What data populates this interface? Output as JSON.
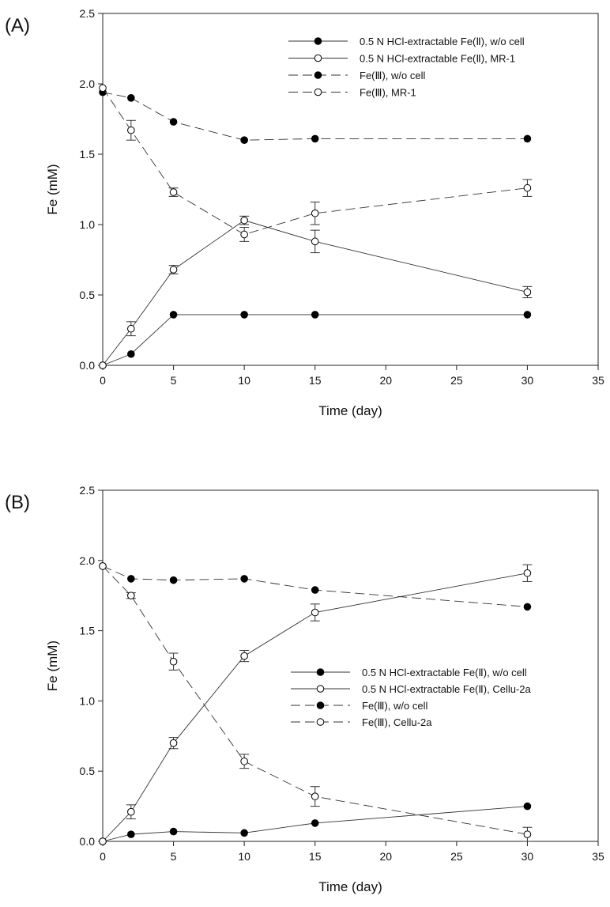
{
  "chart_data": [
    {
      "type": "line",
      "panel_label": "(A)",
      "xlabel": "Time (day)",
      "ylabel": "Fe (mM)",
      "xlim": [
        0,
        35
      ],
      "ylim": [
        0,
        2.5
      ],
      "xticks": [
        0,
        5,
        10,
        15,
        20,
        25,
        30,
        35
      ],
      "yticks": [
        0.0,
        0.5,
        1.0,
        1.5,
        2.0,
        2.5
      ],
      "ytick_labels": [
        "0.0",
        "0.5",
        "1.0",
        "1.5",
        "2.0",
        "2.5"
      ],
      "legend_position": "top-right",
      "series": [
        {
          "name": "0.5 N HCl-extractable Fe(Ⅱ), w/o cell",
          "marker": "filled",
          "line": "solid",
          "x": [
            0,
            2,
            5,
            10,
            15,
            30
          ],
          "y": [
            0.0,
            0.08,
            0.36,
            0.36,
            0.36,
            0.36
          ],
          "err": [
            0,
            0,
            0,
            0,
            0,
            0
          ]
        },
        {
          "name": "0.5 N HCl-extractable Fe(Ⅱ), MR-1",
          "marker": "open",
          "line": "solid",
          "x": [
            0,
            2,
            5,
            10,
            15,
            30
          ],
          "y": [
            0.0,
            0.26,
            0.68,
            1.03,
            0.88,
            0.52
          ],
          "err": [
            0,
            0.05,
            0.03,
            0.03,
            0.08,
            0.04
          ]
        },
        {
          "name": "Fe(Ⅲ), w/o cell",
          "marker": "filled",
          "line": "dashed",
          "x": [
            0,
            2,
            5,
            10,
            15,
            30
          ],
          "y": [
            1.94,
            1.9,
            1.73,
            1.6,
            1.61,
            1.61
          ],
          "err": [
            0,
            0,
            0,
            0,
            0,
            0
          ]
        },
        {
          "name": "Fe(Ⅲ), MR-1",
          "marker": "open",
          "line": "dashed",
          "x": [
            0,
            2,
            5,
            10,
            15,
            30
          ],
          "y": [
            1.97,
            1.67,
            1.23,
            0.93,
            1.08,
            1.26
          ],
          "err": [
            0,
            0.07,
            0.03,
            0.05,
            0.08,
            0.06
          ]
        }
      ]
    },
    {
      "type": "line",
      "panel_label": "(B)",
      "xlabel": "Time (day)",
      "ylabel": "Fe (mM)",
      "xlim": [
        0,
        35
      ],
      "ylim": [
        0,
        2.5
      ],
      "xticks": [
        0,
        5,
        10,
        15,
        20,
        25,
        30,
        35
      ],
      "yticks": [
        0.0,
        0.5,
        1.0,
        1.5,
        2.0,
        2.5
      ],
      "ytick_labels": [
        "0.0",
        "0.5",
        "1.0",
        "1.5",
        "2.0",
        "2.5"
      ],
      "legend_position": "center-right",
      "series": [
        {
          "name": "0.5 N HCl-extractable Fe(Ⅱ), w/o cell",
          "marker": "filled",
          "line": "solid",
          "x": [
            0,
            2,
            5,
            10,
            15,
            30
          ],
          "y": [
            0.0,
            0.05,
            0.07,
            0.06,
            0.13,
            0.25
          ],
          "err": [
            0,
            0,
            0,
            0,
            0,
            0
          ]
        },
        {
          "name": "0.5 N HCl-extractable Fe(Ⅱ), Cellu-2a",
          "marker": "open",
          "line": "solid",
          "x": [
            0,
            2,
            5,
            10,
            15,
            30
          ],
          "y": [
            0.0,
            0.21,
            0.7,
            1.32,
            1.63,
            1.91
          ],
          "err": [
            0,
            0.05,
            0.04,
            0.04,
            0.06,
            0.06
          ]
        },
        {
          "name": "Fe(Ⅲ), w/o cell",
          "marker": "filled",
          "line": "dashed",
          "x": [
            0,
            2,
            5,
            10,
            15,
            30
          ],
          "y": [
            1.96,
            1.87,
            1.86,
            1.87,
            1.79,
            1.67
          ],
          "err": [
            0,
            0,
            0,
            0,
            0,
            0
          ]
        },
        {
          "name": "Fe(Ⅲ), Cellu-2a",
          "marker": "open",
          "line": "dashed",
          "x": [
            0,
            2,
            5,
            10,
            15,
            30
          ],
          "y": [
            1.96,
            1.75,
            1.28,
            0.57,
            0.32,
            0.05
          ],
          "err": [
            0,
            0.02,
            0.06,
            0.05,
            0.07,
            0.05
          ]
        }
      ]
    }
  ]
}
